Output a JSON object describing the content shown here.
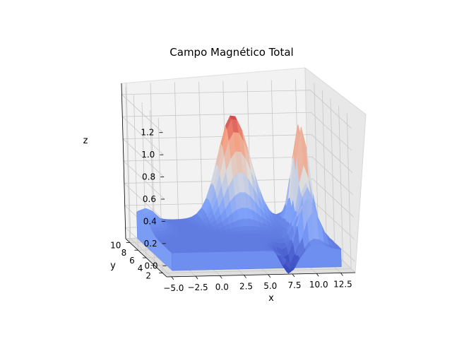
{
  "chart_data": {
    "type": "surface3d",
    "title": "Campo Magnético Total",
    "xlabel": "x",
    "ylabel": "y",
    "zlabel": "z",
    "x_ticks": [
      "−5.0",
      "−2.5",
      "0.0",
      "2.5",
      "5.0",
      "7.5",
      "10.0",
      "12.5"
    ],
    "y_ticks": [
      "2",
      "4",
      "6",
      "8",
      "10"
    ],
    "z_ticks": [
      "0.0",
      "0.2",
      "0.4",
      "0.6",
      "0.8",
      "1.0",
      "1.2"
    ],
    "xlim": [
      -5.5,
      14
    ],
    "ylim": [
      1,
      11
    ],
    "zlim": [
      -0.1,
      1.3
    ],
    "colormap": "coolwarm",
    "grid": true,
    "peaks": [
      {
        "x": 5.5,
        "y": 10,
        "z": 1.0
      },
      {
        "x": 11.5,
        "y": 8,
        "z": 1.1
      }
    ]
  }
}
